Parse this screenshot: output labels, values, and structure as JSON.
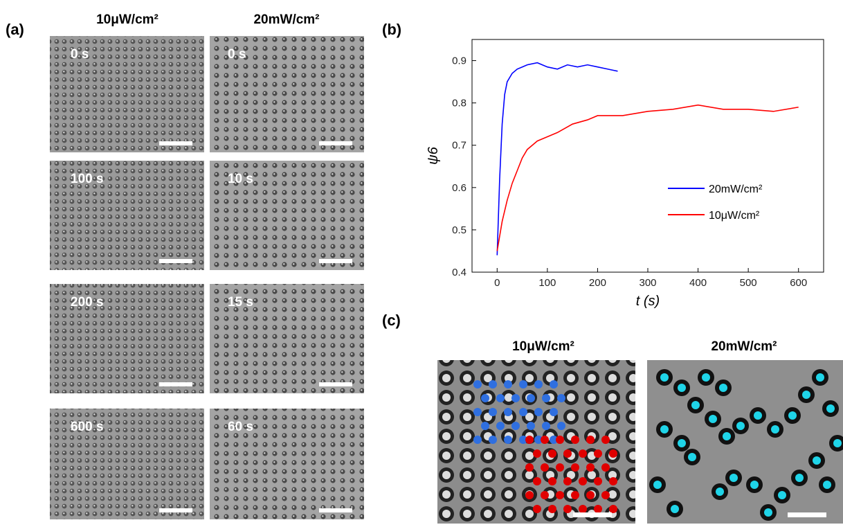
{
  "panels": {
    "a": {
      "label": "(a)",
      "columns": [
        "10μW/cm²",
        "20mW/cm²"
      ],
      "times": [
        [
          "0 s",
          "100 s",
          "200 s",
          "600 s"
        ],
        [
          "0 s",
          "10 s",
          "15 s",
          "60 s"
        ]
      ]
    },
    "b": {
      "label": "(b)"
    },
    "c": {
      "label": "(c)",
      "columns": [
        "10μW/cm²",
        "20mW/cm²"
      ]
    }
  },
  "chart_data": {
    "type": "line",
    "xlabel": "t (s)",
    "ylabel": "ψ6",
    "xlim": [
      -50,
      650
    ],
    "ylim": [
      0.4,
      0.95
    ],
    "xticks": [
      0,
      100,
      200,
      300,
      400,
      500,
      600
    ],
    "yticks": [
      0.4,
      0.5,
      0.6,
      0.7,
      0.8,
      0.9
    ],
    "legend": "center-right",
    "series": [
      {
        "name": "20mW/cm²",
        "color": "#0000ff",
        "x": [
          0,
          5,
          10,
          15,
          20,
          30,
          40,
          50,
          60,
          80,
          100,
          120,
          140,
          160,
          180,
          200,
          220,
          240
        ],
        "values": [
          0.44,
          0.62,
          0.75,
          0.82,
          0.85,
          0.87,
          0.88,
          0.885,
          0.89,
          0.895,
          0.885,
          0.88,
          0.89,
          0.885,
          0.89,
          0.885,
          0.88,
          0.875
        ]
      },
      {
        "name": "10μW/cm²",
        "color": "#ff0000",
        "x": [
          0,
          10,
          20,
          30,
          40,
          50,
          60,
          80,
          100,
          120,
          150,
          180,
          200,
          250,
          300,
          350,
          400,
          450,
          500,
          550,
          600
        ],
        "values": [
          0.45,
          0.52,
          0.57,
          0.61,
          0.64,
          0.67,
          0.69,
          0.71,
          0.72,
          0.73,
          0.75,
          0.76,
          0.77,
          0.77,
          0.78,
          0.785,
          0.795,
          0.785,
          0.785,
          0.78,
          0.79
        ]
      }
    ]
  }
}
